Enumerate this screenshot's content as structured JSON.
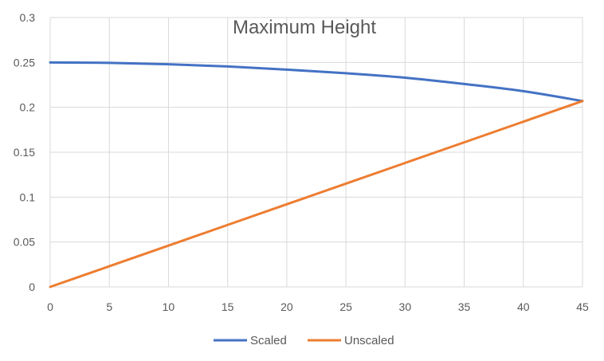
{
  "chart_data": {
    "type": "line",
    "title": "Maximum Height",
    "xlabel": "",
    "ylabel": "",
    "xlim": [
      0,
      45
    ],
    "ylim": [
      0,
      0.3
    ],
    "x_ticks": [
      "0",
      "5",
      "10",
      "15",
      "20",
      "25",
      "30",
      "35",
      "40",
      "45"
    ],
    "y_ticks": [
      "0",
      "0.05",
      "0.1",
      "0.15",
      "0.2",
      "0.25",
      "0.3"
    ],
    "grid": true,
    "legend_position": "bottom",
    "x": [
      0,
      5,
      10,
      15,
      20,
      25,
      30,
      35,
      40,
      45
    ],
    "series": [
      {
        "name": "Scaled",
        "color": "#4472C4",
        "values": [
          0.25,
          0.2495,
          0.248,
          0.2455,
          0.242,
          0.238,
          0.233,
          0.226,
          0.218,
          0.207
        ]
      },
      {
        "name": "Unscaled",
        "color": "#ED7D31",
        "values": [
          0,
          0.023,
          0.046,
          0.069,
          0.092,
          0.115,
          0.138,
          0.161,
          0.184,
          0.207
        ]
      }
    ]
  },
  "colors": {
    "gridline": "#d9d9d9",
    "text": "#595959"
  }
}
